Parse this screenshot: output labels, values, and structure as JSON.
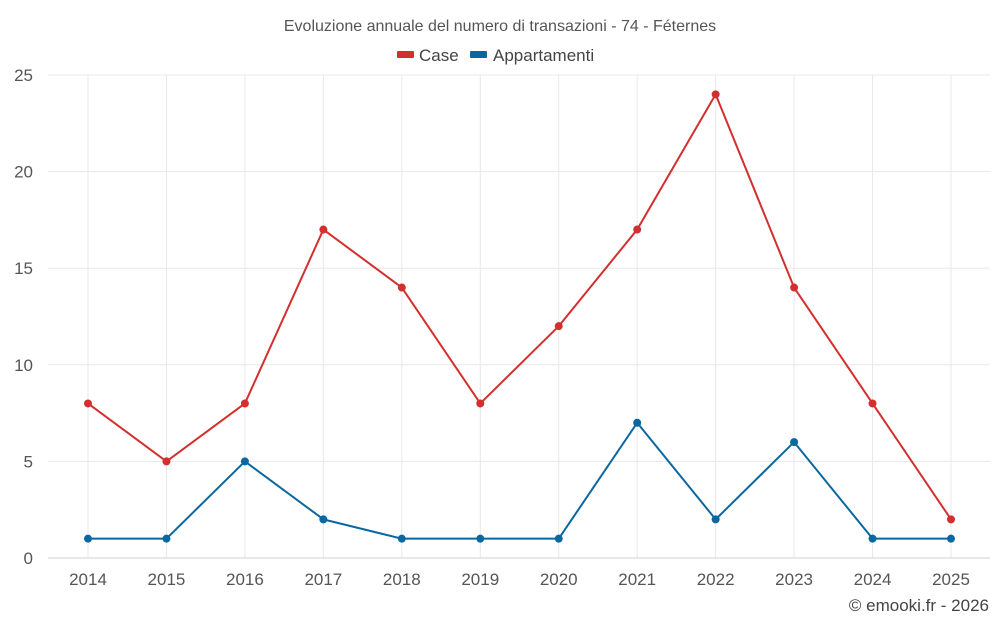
{
  "chart_data": {
    "type": "line",
    "title": "Evoluzione annuale del numero di transazioni - 74 - Féternes",
    "categories": [
      "2014",
      "2015",
      "2016",
      "2017",
      "2018",
      "2019",
      "2020",
      "2021",
      "2022",
      "2023",
      "2024",
      "2025"
    ],
    "series": [
      {
        "name": "Case",
        "color": "#d32f2f",
        "values": [
          8,
          5,
          8,
          17,
          14,
          8,
          12,
          17,
          24,
          14,
          8,
          2
        ]
      },
      {
        "name": "Appartamenti",
        "color": "#0b67a0",
        "values": [
          1,
          1,
          5,
          2,
          1,
          1,
          1,
          7,
          2,
          6,
          1,
          1
        ]
      }
    ],
    "ylim": [
      0,
      25
    ],
    "yticks": [
      "0",
      "5",
      "10",
      "15",
      "20",
      "25"
    ],
    "xlabel": "",
    "ylabel": "",
    "grid": true,
    "legend_position": "top-center"
  },
  "credit": "© emooki.fr - 2026"
}
